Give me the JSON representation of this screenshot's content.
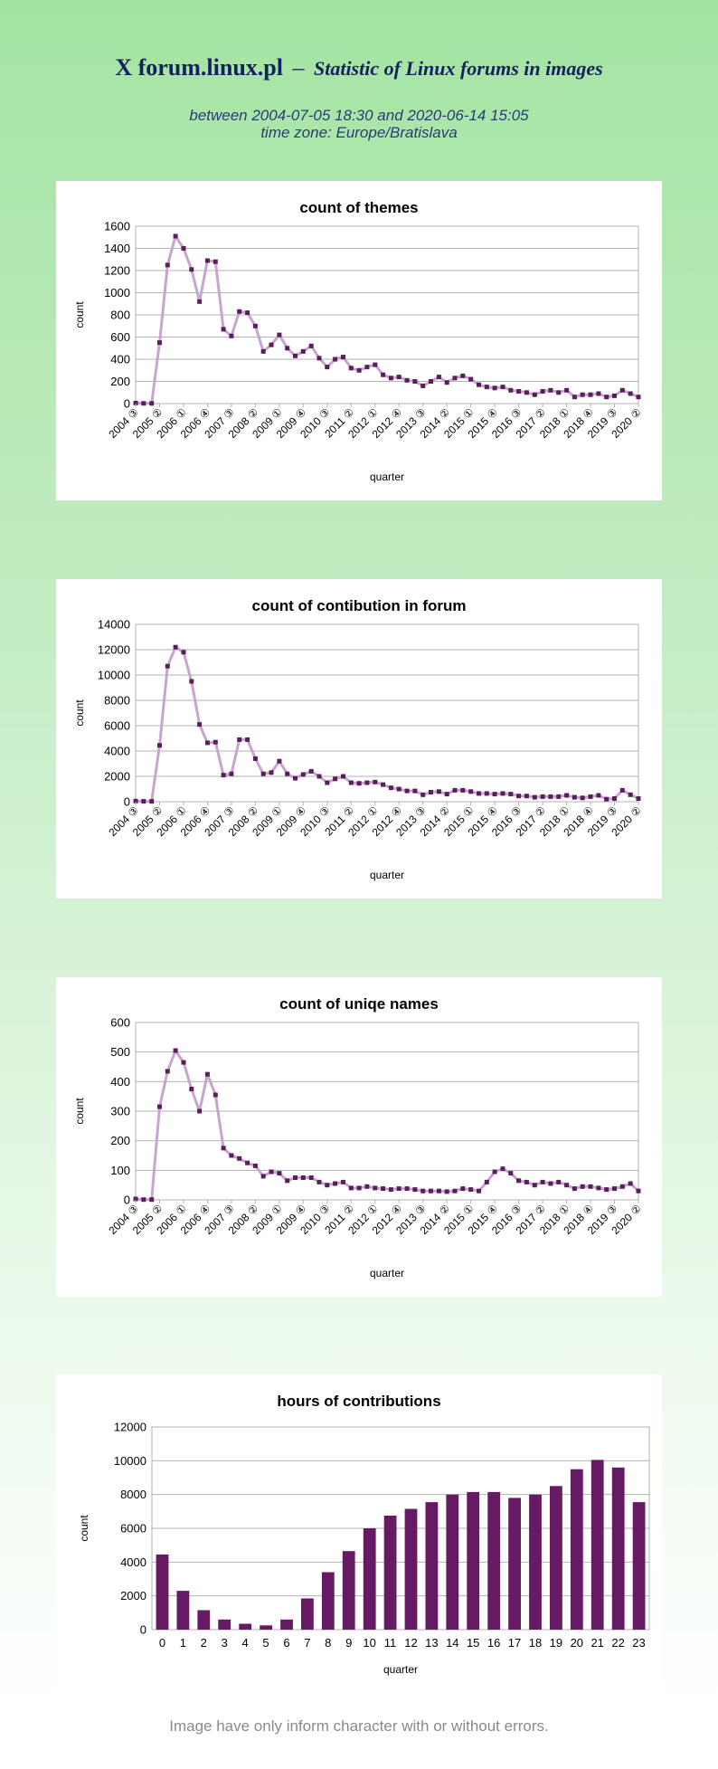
{
  "header": {
    "brand_mark": "X",
    "site": "forum.linux.pl",
    "dash": "–",
    "subtitle": "Statistic of Linux forums in images",
    "period": "between 2004-07-05 18:30 and 2020-06-14 15:05",
    "timezone": "time zone: Europe/Bratislava"
  },
  "footer": {
    "note": "Image have only inform character with or without errors."
  },
  "colors": {
    "line": "#c8a4d0",
    "marker": "#5a1e5c",
    "bar": "#661a63",
    "grid": "#b3b3b3",
    "text": "#000000"
  },
  "chart_data": [
    {
      "type": "line",
      "title": "count of themes",
      "xlabel": "quarter",
      "ylabel": "count",
      "ylim": [
        0,
        1600
      ],
      "yticks": [
        0,
        200,
        400,
        600,
        800,
        1000,
        1200,
        1400,
        1600
      ],
      "xtick_labels": [
        "2004 ③",
        "2005 ②",
        "2006 ①",
        "2006 ④",
        "2007 ③",
        "2008 ②",
        "2009 ①",
        "2009 ④",
        "2010 ③",
        "2011 ②",
        "2012 ①",
        "2012 ④",
        "2013 ③",
        "2014 ②",
        "2015 ①",
        "2015 ④",
        "2016 ③",
        "2017 ②",
        "2018 ①",
        "2018 ④",
        "2019 ③",
        "2020 ②"
      ],
      "grid": true,
      "values": [
        5,
        2,
        2,
        550,
        1250,
        1510,
        1400,
        1210,
        920,
        1290,
        1280,
        670,
        610,
        830,
        820,
        700,
        470,
        530,
        620,
        500,
        430,
        470,
        520,
        410,
        330,
        400,
        420,
        320,
        300,
        330,
        350,
        260,
        230,
        240,
        210,
        200,
        160,
        200,
        240,
        190,
        230,
        250,
        220,
        170,
        150,
        140,
        150,
        120,
        110,
        100,
        80,
        110,
        120,
        100,
        120,
        60,
        80,
        80,
        90,
        60,
        70,
        120,
        90,
        60
      ]
    },
    {
      "type": "line",
      "title": "count of contibution in forum",
      "xlabel": "quarter",
      "ylabel": "count",
      "ylim": [
        0,
        14000
      ],
      "yticks": [
        0,
        2000,
        4000,
        6000,
        8000,
        10000,
        12000,
        14000
      ],
      "xtick_labels": [
        "2004 ③",
        "2005 ②",
        "2006 ①",
        "2006 ④",
        "2007 ③",
        "2008 ②",
        "2009 ①",
        "2009 ④",
        "2010 ③",
        "2011 ②",
        "2012 ①",
        "2012 ④",
        "2013 ③",
        "2014 ②",
        "2015 ①",
        "2015 ④",
        "2016 ③",
        "2017 ②",
        "2018 ①",
        "2018 ④",
        "2019 ③",
        "2020 ②"
      ],
      "grid": true,
      "values": [
        50,
        30,
        30,
        4450,
        10700,
        12200,
        11800,
        9500,
        6100,
        4650,
        4700,
        2100,
        2200,
        4900,
        4900,
        3400,
        2200,
        2300,
        3200,
        2200,
        1850,
        2150,
        2400,
        2000,
        1500,
        1800,
        2000,
        1500,
        1450,
        1500,
        1550,
        1350,
        1100,
        1000,
        850,
        850,
        550,
        750,
        800,
        600,
        900,
        900,
        800,
        650,
        650,
        600,
        650,
        600,
        450,
        450,
        350,
        400,
        400,
        400,
        500,
        350,
        300,
        400,
        500,
        200,
        250,
        900,
        550,
        250
      ]
    },
    {
      "type": "line",
      "title": "count of uniqe names",
      "xlabel": "quarter",
      "ylabel": "count",
      "ylim": [
        0,
        600
      ],
      "yticks": [
        0,
        100,
        200,
        300,
        400,
        500,
        600
      ],
      "xtick_labels": [
        "2004 ③",
        "2005 ②",
        "2006 ①",
        "2006 ④",
        "2007 ③",
        "2008 ②",
        "2009 ①",
        "2009 ④",
        "2010 ③",
        "2011 ②",
        "2012 ①",
        "2012 ④",
        "2013 ③",
        "2014 ②",
        "2015 ①",
        "2015 ④",
        "2016 ③",
        "2017 ②",
        "2018 ①",
        "2018 ④",
        "2019 ③",
        "2020 ②"
      ],
      "grid": true,
      "values": [
        3,
        1,
        1,
        315,
        435,
        505,
        465,
        375,
        300,
        425,
        355,
        175,
        150,
        140,
        125,
        115,
        80,
        95,
        90,
        65,
        75,
        75,
        75,
        60,
        50,
        55,
        60,
        40,
        40,
        45,
        40,
        38,
        35,
        38,
        38,
        35,
        30,
        30,
        30,
        28,
        30,
        38,
        35,
        30,
        60,
        95,
        105,
        90,
        65,
        60,
        50,
        60,
        55,
        60,
        50,
        38,
        45,
        45,
        40,
        35,
        38,
        45,
        55,
        30
      ]
    },
    {
      "type": "bar",
      "title": "hours of contributions",
      "xlabel": "quarter",
      "ylabel": "count",
      "ylim": [
        0,
        12000
      ],
      "yticks": [
        0,
        2000,
        4000,
        6000,
        8000,
        10000,
        12000
      ],
      "grid": true,
      "categories": [
        "0",
        "1",
        "2",
        "3",
        "4",
        "5",
        "6",
        "7",
        "8",
        "9",
        "10",
        "11",
        "12",
        "13",
        "14",
        "15",
        "16",
        "17",
        "18",
        "19",
        "20",
        "21",
        "22",
        "23"
      ],
      "values": [
        4450,
        2300,
        1150,
        600,
        350,
        250,
        600,
        1850,
        3400,
        4650,
        6000,
        6750,
        7150,
        7550,
        8000,
        8150,
        8150,
        7800,
        8000,
        8500,
        9500,
        10050,
        9600,
        7550
      ]
    }
  ]
}
